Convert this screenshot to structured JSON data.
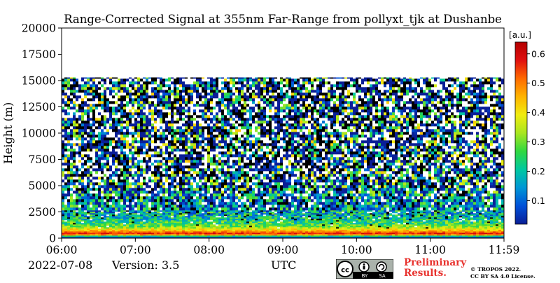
{
  "chart_data": {
    "type": "heatmap",
    "title": "Range-Corrected Signal at 355nm Far-Range from pollyxt_tjk at Dushanbe",
    "ylabel": "Height (m)",
    "xlabel": "UTC",
    "x_ticks": [
      "06:00",
      "07:00",
      "08:00",
      "09:00",
      "10:00",
      "11:00",
      "11:59"
    ],
    "x_range": [
      "06:00",
      "11:59"
    ],
    "y_ticks": [
      0,
      2500,
      5000,
      7500,
      10000,
      12500,
      15000,
      17500,
      20000
    ],
    "ylim": [
      0,
      20000
    ],
    "data_top_height": 15300,
    "colorbar": {
      "label": "[a.u.]",
      "ticks": [
        0.1,
        0.2,
        0.3,
        0.4,
        0.5,
        0.6
      ],
      "range": [
        0.02,
        0.64
      ],
      "colors": [
        "#0a1e96",
        "#0050d8",
        "#0096d6",
        "#00c8a0",
        "#30d840",
        "#a8e620",
        "#f0ec10",
        "#ffb400",
        "#ff6a00",
        "#e01010",
        "#b40000"
      ]
    },
    "profile": [
      {
        "height": 0,
        "value": 0.02
      },
      {
        "height": 100,
        "value": 0.08
      },
      {
        "height": 200,
        "value": 0.22
      },
      {
        "height": 400,
        "value": 0.6
      },
      {
        "height": 800,
        "value": 0.42
      },
      {
        "height": 1200,
        "value": 0.28
      },
      {
        "height": 2000,
        "value": 0.2
      },
      {
        "height": 3000,
        "value": 0.15
      },
      {
        "height": 5000,
        "value": 0.12
      },
      {
        "height": 8000,
        "value": 0.1
      },
      {
        "height": 15300,
        "value": 0.08
      }
    ]
  },
  "footer": {
    "date": "2022-07-08",
    "version": "Version: 3.5",
    "utc": "UTC",
    "license_badge": "cc-by-sa-icon",
    "badge_text": [
      "BY",
      "SA"
    ],
    "preliminary": [
      "Preliminary",
      "Results."
    ],
    "copyright": [
      "© TROPOS 2022.",
      "CC BY SA 4.0 License."
    ]
  }
}
